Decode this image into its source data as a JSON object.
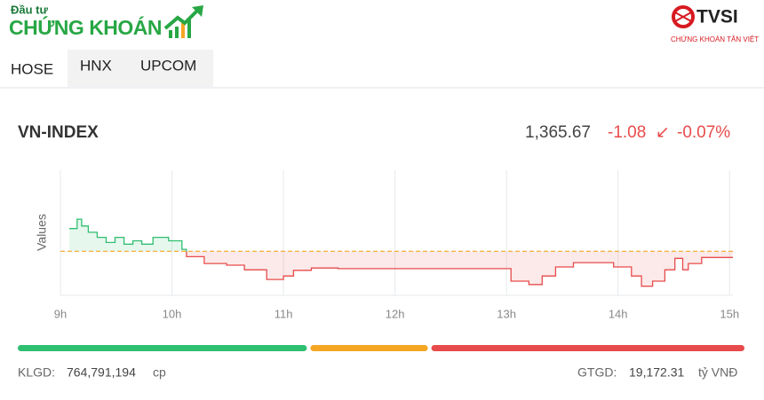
{
  "header": {
    "brand_small": "Đầu tư",
    "brand_big": "CHỨNG KHOÁN",
    "partner": "TVSI",
    "partner_sub": "CHỨNG KHOÁN TÂN VIỆT"
  },
  "tabs": [
    "HOSE",
    "HNX",
    "UPCOM"
  ],
  "index": {
    "name": "VN-INDEX",
    "price": "1,365.67",
    "change": "-1.08",
    "arrow": "↙",
    "percent": "-0.07%"
  },
  "chart_data": {
    "type": "line",
    "ylabel": "Values",
    "x": [
      9.08,
      9.15,
      9.19,
      9.25,
      9.33,
      9.41,
      9.49,
      9.57,
      9.65,
      9.73,
      9.83,
      9.97,
      10.09,
      10.13,
      10.29,
      10.49,
      10.65,
      10.85,
      11.0,
      11.09,
      11.25,
      11.49,
      12.99,
      13.04,
      13.2,
      13.32,
      13.44,
      13.6,
      13.76,
      13.96,
      14.12,
      14.21,
      14.31,
      14.42,
      14.51,
      14.58,
      14.63,
      14.75,
      15.03
    ],
    "series": [
      {
        "values": [
          1370.75,
          1372.4,
          1371.2,
          1370.1,
          1369.2,
          1368.3,
          1369.2,
          1368.0,
          1368.6,
          1368.0,
          1369.2,
          1368.6,
          1367.1,
          1365.8,
          1364.6,
          1364.3,
          1363.5,
          1361.8,
          1362.4,
          1363.4,
          1363.8,
          1363.7,
          1363.7,
          1361.5,
          1360.9,
          1362.4,
          1364.0,
          1364.75,
          1364.75,
          1364.0,
          1362.4,
          1360.6,
          1361.5,
          1363.5,
          1365.5,
          1363.5,
          1364.6,
          1365.67,
          1365.67
        ]
      }
    ],
    "reference": 1366.75,
    "up_color": "#2fbf71",
    "down_color": "#e84b4b",
    "reference_color": "#f5a623",
    "xlim": [
      9,
      15.03
    ],
    "ylim": [
      1359,
      1381
    ],
    "xticks": [
      {
        "value": 9,
        "label": "9h"
      },
      {
        "value": 10,
        "label": "10h"
      },
      {
        "value": 11,
        "label": "11h"
      },
      {
        "value": 12,
        "label": "12h"
      },
      {
        "value": 13,
        "label": "13h"
      },
      {
        "value": 14,
        "label": "14h"
      },
      {
        "value": 15,
        "label": "15h"
      }
    ],
    "grid": true
  },
  "breadth": {
    "values": [
      325,
      132,
      352
    ],
    "colors": [
      "#2fbf71",
      "#f5a623",
      "#e84b4b"
    ]
  },
  "footer": {
    "volume_label": "KLGD:",
    "volume": "764,791,194",
    "volume_unit": "cp",
    "value_label": "GTGD:",
    "value": "19,172.31",
    "value_unit": "tỷ VNĐ"
  }
}
